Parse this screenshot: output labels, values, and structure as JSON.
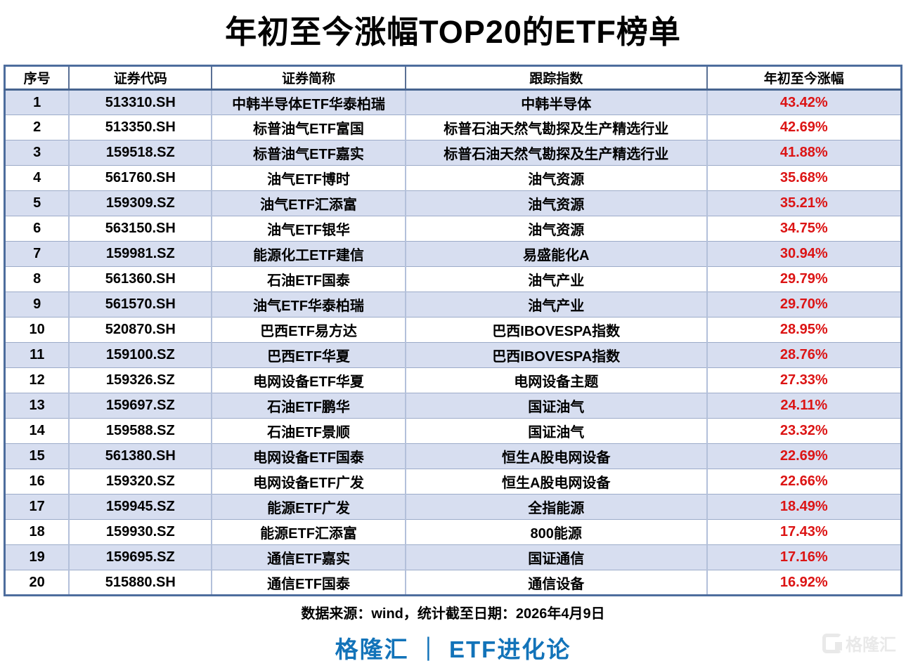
{
  "title": "年初至今涨幅TOP20的ETF榜单",
  "table": {
    "columns": [
      "序号",
      "证券代码",
      "证券简称",
      "跟踪指数",
      "年初至今涨幅"
    ],
    "rows": [
      {
        "rank": "1",
        "code": "513310.SH",
        "name": "中韩半导体ETF华泰柏瑞",
        "index": "中韩半导体",
        "change": "43.42%"
      },
      {
        "rank": "2",
        "code": "513350.SH",
        "name": "标普油气ETF富国",
        "index": "标普石油天然气勘探及生产精选行业",
        "change": "42.69%"
      },
      {
        "rank": "3",
        "code": "159518.SZ",
        "name": "标普油气ETF嘉实",
        "index": "标普石油天然气勘探及生产精选行业",
        "change": "41.88%"
      },
      {
        "rank": "4",
        "code": "561760.SH",
        "name": "油气ETF博时",
        "index": "油气资源",
        "change": "35.68%"
      },
      {
        "rank": "5",
        "code": "159309.SZ",
        "name": "油气ETF汇添富",
        "index": "油气资源",
        "change": "35.21%"
      },
      {
        "rank": "6",
        "code": "563150.SH",
        "name": "油气ETF银华",
        "index": "油气资源",
        "change": "34.75%"
      },
      {
        "rank": "7",
        "code": "159981.SZ",
        "name": "能源化工ETF建信",
        "index": "易盛能化A",
        "change": "30.94%"
      },
      {
        "rank": "8",
        "code": "561360.SH",
        "name": "石油ETF国泰",
        "index": "油气产业",
        "change": "29.79%"
      },
      {
        "rank": "9",
        "code": "561570.SH",
        "name": "油气ETF华泰柏瑞",
        "index": "油气产业",
        "change": "29.70%"
      },
      {
        "rank": "10",
        "code": "520870.SH",
        "name": "巴西ETF易方达",
        "index": "巴西IBOVESPA指数",
        "change": "28.95%"
      },
      {
        "rank": "11",
        "code": "159100.SZ",
        "name": "巴西ETF华夏",
        "index": "巴西IBOVESPA指数",
        "change": "28.76%"
      },
      {
        "rank": "12",
        "code": "159326.SZ",
        "name": "电网设备ETF华夏",
        "index": "电网设备主题",
        "change": "27.33%"
      },
      {
        "rank": "13",
        "code": "159697.SZ",
        "name": "石油ETF鹏华",
        "index": "国证油气",
        "change": "24.11%"
      },
      {
        "rank": "14",
        "code": "159588.SZ",
        "name": "石油ETF景顺",
        "index": "国证油气",
        "change": "23.32%"
      },
      {
        "rank": "15",
        "code": "561380.SH",
        "name": "电网设备ETF国泰",
        "index": "恒生A股电网设备",
        "change": "22.69%"
      },
      {
        "rank": "16",
        "code": "159320.SZ",
        "name": "电网设备ETF广发",
        "index": "恒生A股电网设备",
        "change": "22.66%"
      },
      {
        "rank": "17",
        "code": "159945.SZ",
        "name": "能源ETF广发",
        "index": "全指能源",
        "change": "18.49%"
      },
      {
        "rank": "18",
        "code": "159930.SZ",
        "name": "能源ETF汇添富",
        "index": "800能源",
        "change": "17.43%"
      },
      {
        "rank": "19",
        "code": "159695.SZ",
        "name": "通信ETF嘉实",
        "index": "国证通信",
        "change": "17.16%"
      },
      {
        "rank": "20",
        "code": "515880.SH",
        "name": "通信ETF国泰",
        "index": "通信设备",
        "change": "16.92%"
      }
    ]
  },
  "footer": {
    "source_note": "数据来源：wind，统计截至日期：2026年4月9日"
  },
  "branding": {
    "text": "格隆汇 ｜ ETF进化论",
    "watermark_text": "格隆汇"
  },
  "colors": {
    "title": "#000000",
    "row_alt": "#d7def0",
    "change_red": "#dc1414",
    "brand_blue": "#1273b9",
    "border_dark": "#4d6d9d",
    "border_light": "#b3c0da"
  }
}
